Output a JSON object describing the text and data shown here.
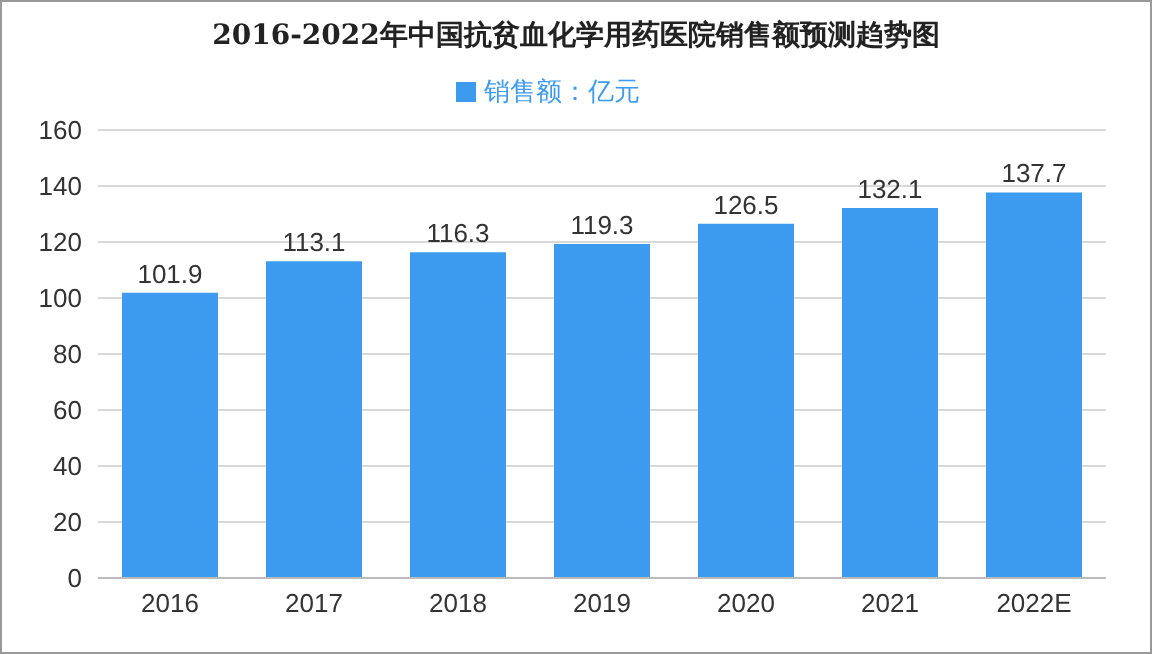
{
  "chart_data": {
    "type": "bar",
    "title": "2016-2022年中国抗贫血化学用药医院销售额预测趋势图",
    "categories": [
      "2016",
      "2017",
      "2018",
      "2019",
      "2020",
      "2021",
      "2022E"
    ],
    "series": [
      {
        "name": "销售额：亿元",
        "color": "#3d9bef",
        "values": [
          101.9,
          113.1,
          116.3,
          119.3,
          126.5,
          132.1,
          137.7
        ]
      }
    ],
    "ylim": [
      0,
      160
    ],
    "yticks": [
      0,
      20,
      40,
      60,
      80,
      100,
      120,
      140,
      160
    ],
    "grid": "y",
    "legend": "top",
    "data_labels": true
  }
}
